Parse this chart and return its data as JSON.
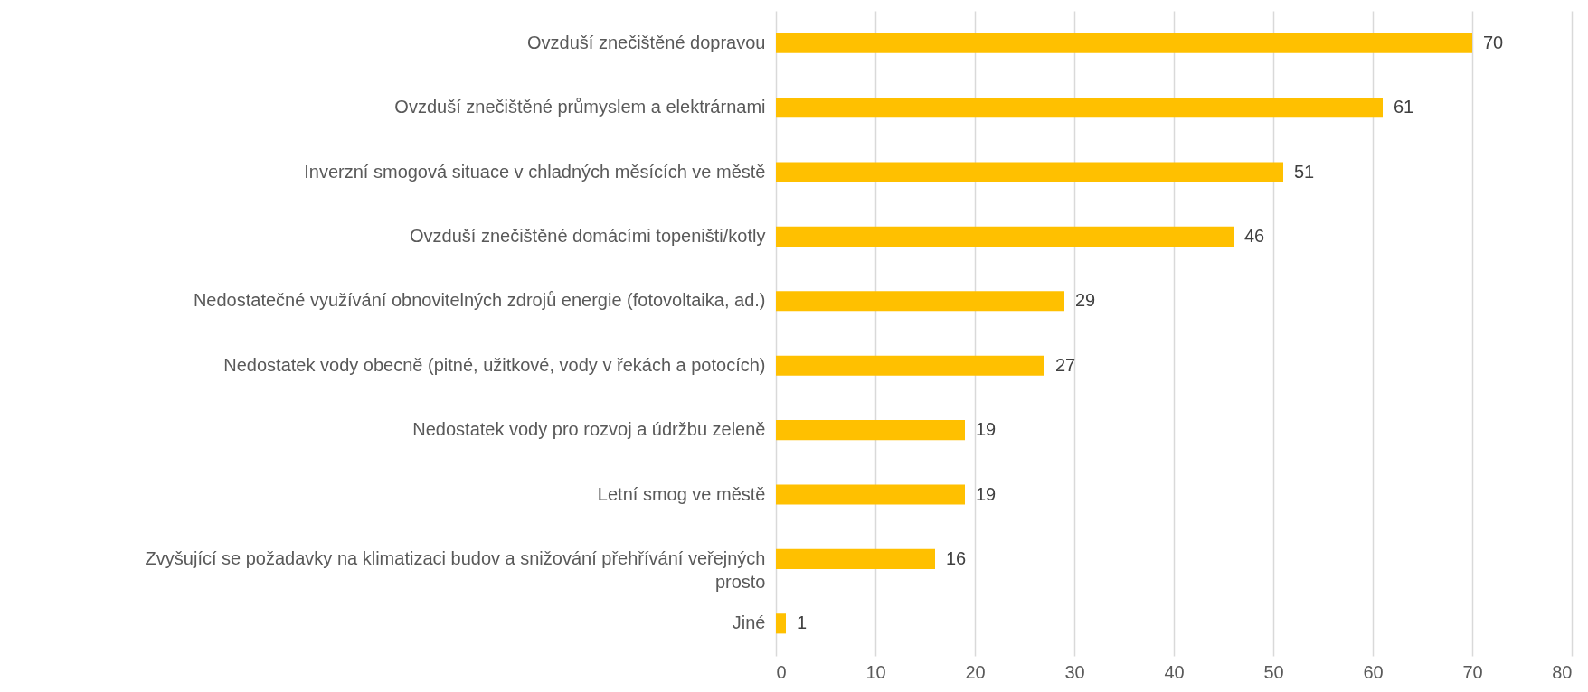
{
  "chart_data": {
    "type": "bar",
    "orientation": "horizontal",
    "categories": [
      "Ovzduší znečištěné dopravou",
      "Ovzduší znečištěné průmyslem a elektrárnami",
      "Inverzní smogová situace v chladných měsících ve městě",
      "Ovzduší znečištěné domácími topeništi/kotly",
      "Nedostatečné využívání obnovitelných zdrojů energie (fotovoltaika, ad.)",
      "Nedostatek vody obecně (pitné, užitkové, vody v řekách a potocích)",
      "Nedostatek vody pro rozvoj a údržbu zeleně",
      "Letní smog ve městě",
      "Zvyšující se požadavky na klimatizaci budov a snižování přehřívání veřejných prosto",
      "Jiné"
    ],
    "values": [
      70,
      61,
      51,
      46,
      29,
      27,
      19,
      19,
      16,
      1
    ],
    "color": "#ffc000",
    "xlim": [
      0,
      80
    ],
    "xticks": [
      0,
      10,
      20,
      30,
      40,
      50,
      60,
      70,
      80
    ],
    "grid": "x",
    "data_labels": true
  }
}
